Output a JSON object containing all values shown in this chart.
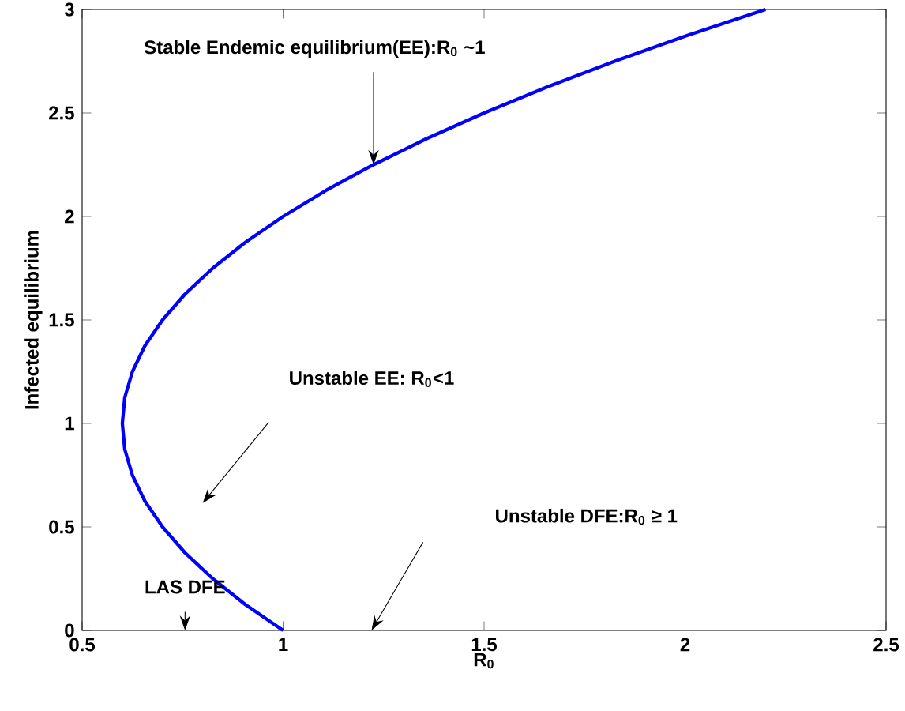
{
  "chart_data": {
    "type": "line",
    "xlabel": "R$_{0}$",
    "ylabel": "Infected equilibrium",
    "x": [
      1.0,
      0.906,
      0.825,
      0.756,
      0.7,
      0.656,
      0.625,
      0.606,
      0.6,
      0.606,
      0.625,
      0.656,
      0.7,
      0.756,
      0.825,
      0.906,
      1.0,
      1.106,
      1.225,
      1.356,
      1.5,
      1.656,
      1.825,
      2.006,
      2.2
    ],
    "values": [
      0,
      0.125,
      0.25,
      0.375,
      0.5,
      0.625,
      0.75,
      0.875,
      1.0,
      1.125,
      1.25,
      1.375,
      1.5,
      1.625,
      1.75,
      1.875,
      2.0,
      2.125,
      2.25,
      2.375,
      2.5,
      2.625,
      2.75,
      2.875,
      3.0
    ],
    "color": "#0000ff",
    "line_style": "solid",
    "marker": "none",
    "xlim": [
      0.5,
      2.5
    ],
    "xticks": [
      0.5,
      1,
      1.5,
      2,
      2.5
    ],
    "ylim": [
      0,
      3
    ],
    "yticks": [
      0,
      0.5,
      1,
      1.5,
      2,
      2.5,
      3
    ],
    "annotations": [
      {
        "text": "Stable Endemic equilibrium(EE):R$_{0}$ ~1",
        "x": 1.225,
        "y": 2.25
      },
      "Unstable EE: R$_{0}$<1",
      "Unstable DFE:R$_{0}$ ≥ 1",
      "LAS DFE"
    ]
  }
}
